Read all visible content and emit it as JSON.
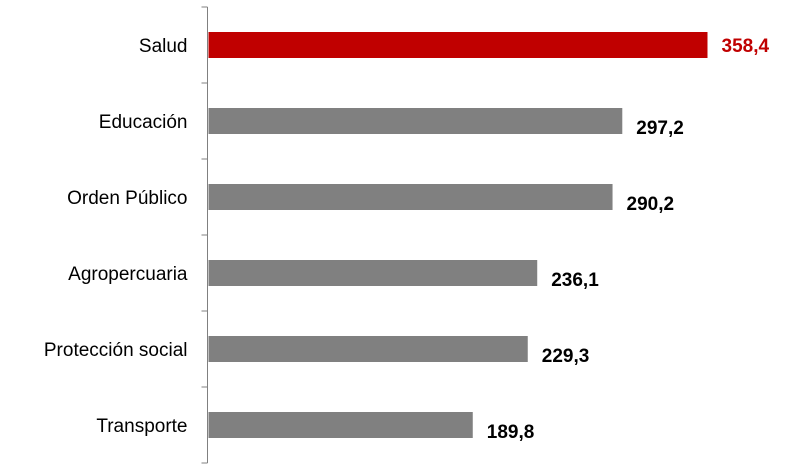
{
  "chart_data": {
    "type": "bar",
    "orientation": "horizontal",
    "categories": [
      "Salud",
      "Educación",
      "Orden Público",
      "Agropercuaria",
      "Protección social",
      "Transporte"
    ],
    "values": [
      358.4,
      297.2,
      290.2,
      236.1,
      229.3,
      189.8
    ],
    "value_labels": [
      "358,4",
      "297,2",
      "290,2",
      "236,1",
      "229,3",
      "189,8"
    ],
    "title": "",
    "xlabel": "",
    "ylabel": "",
    "xlim": [
      0,
      358.4
    ],
    "grid": false,
    "legend": "none",
    "colors": {
      "highlight_bar": "#c00000",
      "highlight_label": "#c00000",
      "default_bar": "#808080",
      "default_label": "#000000",
      "axis": "#808080"
    },
    "highlight_index": 0
  }
}
